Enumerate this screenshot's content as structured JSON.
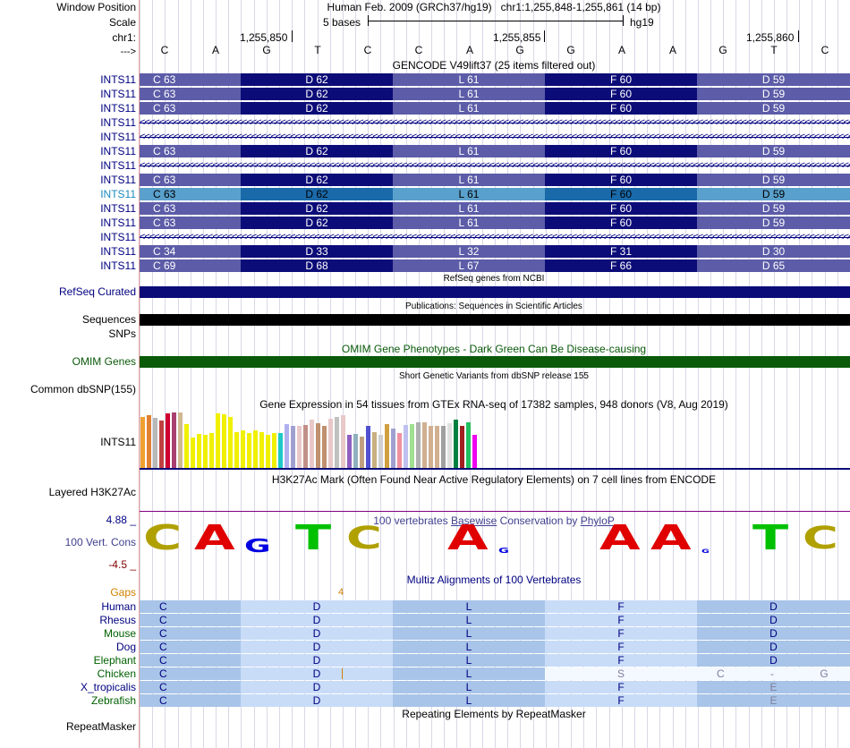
{
  "header": {
    "window_position_label": "Window Position",
    "scale_label": "Scale",
    "chrom_label": "chr1:",
    "arrow_label": "--->",
    "assembly": "Human Feb. 2009 (GRCh37/hg19)",
    "position": "chr1:1,255,848-1,255,861 (14 bp)",
    "scale_text": "5 bases",
    "db": "hg19",
    "coords": [
      "1,255,850",
      "1,255,855",
      "1,255,860"
    ],
    "bases": [
      "C",
      "A",
      "G",
      "T",
      "C",
      "C",
      "A",
      "G",
      "G",
      "A",
      "A",
      "G",
      "T",
      "C"
    ]
  },
  "gencode": {
    "title": "GENCODE V49lift37 (25 items filtered out)",
    "rows": [
      {
        "label": "INTS11",
        "type": "aa",
        "aa": [
          "C 63",
          "D 62",
          "L 61",
          "F 60",
          "D 59"
        ]
      },
      {
        "label": "INTS11",
        "type": "aa",
        "aa": [
          "C 63",
          "D 62",
          "L 61",
          "F 60",
          "D 59"
        ]
      },
      {
        "label": "INTS11",
        "type": "aa",
        "aa": [
          "C 63",
          "D 62",
          "L 61",
          "F 60",
          "D 59"
        ]
      },
      {
        "label": "INTS11",
        "type": "intron",
        "aa": []
      },
      {
        "label": "INTS11",
        "type": "intron",
        "aa": []
      },
      {
        "label": "INTS11",
        "type": "aa",
        "aa": [
          "C 63",
          "D 62",
          "L 61",
          "F 60",
          "D 59"
        ]
      },
      {
        "label": "INTS11",
        "type": "intron",
        "aa": []
      },
      {
        "label": "INTS11",
        "type": "aa",
        "aa": [
          "C 63",
          "D 62",
          "L 61",
          "F 60",
          "D 59"
        ]
      },
      {
        "label": "INTS11",
        "type": "aa_hl",
        "aa": [
          "C 63",
          "D 62",
          "L 61",
          "F 60",
          "D 59"
        ]
      },
      {
        "label": "INTS11",
        "type": "aa",
        "aa": [
          "C 63",
          "D 62",
          "L 61",
          "F 60",
          "D 59"
        ]
      },
      {
        "label": "INTS11",
        "type": "aa",
        "aa": [
          "C 63",
          "D 62",
          "L 61",
          "F 60",
          "D 59"
        ]
      },
      {
        "label": "INTS11",
        "type": "intron",
        "aa": []
      },
      {
        "label": "INTS11",
        "type": "aa",
        "aa": [
          "C 34",
          "D 33",
          "L 32",
          "F 31",
          "D 30"
        ]
      },
      {
        "label": "INTS11",
        "type": "aa",
        "aa": [
          "C 69",
          "D 68",
          "L 67",
          "F 66",
          "D 65"
        ]
      }
    ],
    "colors": {
      "light": "#5c5ca8",
      "dark": "#0c0c78",
      "hl_light": "#5aa0cc",
      "hl_dark": "#1a6aaa",
      "label": "#000080",
      "label_hl": "#1a8ac0"
    }
  },
  "refseq": {
    "title": "RefSeq genes from NCBI",
    "label": "RefSeq Curated",
    "color": "#0c0c78"
  },
  "publications": {
    "title": "Publications: Sequences in Scientific Articles",
    "label": "Sequences",
    "color": "#000000"
  },
  "snps_label": "SNPs",
  "omim": {
    "title": "OMIM Gene Phenotypes - Dark Green Can Be Disease-causing",
    "label": "OMIM Genes",
    "color": "#0a5a0a"
  },
  "dbsnp": {
    "title": "Short Genetic Variants from dbSNP release 155",
    "label": "Common dbSNP(155)"
  },
  "gtex": {
    "title": "Gene Expression in 54 tissues from GTEx RNA-seq of 17382 samples, 948 donors (V8, Aug 2019)",
    "label": "INTS11",
    "values": [
      58,
      60,
      57,
      54,
      62,
      63,
      63,
      50,
      35,
      39,
      38,
      40,
      62,
      61,
      58,
      41,
      43,
      40,
      43,
      41,
      38,
      40,
      40,
      50,
      48,
      48,
      49,
      55,
      51,
      48,
      56,
      58,
      60,
      38,
      39,
      36,
      48,
      41,
      38,
      50,
      45,
      40,
      49,
      50,
      52,
      52,
      48,
      48,
      48,
      51,
      55,
      48,
      52,
      38
    ],
    "colors": [
      "#f0a030",
      "#e08030",
      "#b8b8b8",
      "#c04040",
      "#d00030",
      "#a84070",
      "#d0b890",
      "#f0f000",
      "#f0f000",
      "#f0f000",
      "#f0f000",
      "#f0f000",
      "#f0f000",
      "#f0f000",
      "#f0f000",
      "#f0f000",
      "#f0f000",
      "#f0f000",
      "#f0f000",
      "#f0f000",
      "#f0f000",
      "#f0f000",
      "#20c8c8",
      "#b0b0f0",
      "#a0a0d0",
      "#e8c8c8",
      "#c09088",
      "#e8c8c8",
      "#c09070",
      "#c09070",
      "#e8c8c8",
      "#c0c0c0",
      "#e8c8c8",
      "#9060c0",
      "#90b0c0",
      "#c0a080",
      "#5050d0",
      "#c8b080",
      "#d0d0d0",
      "#d0a040",
      "#a0a0d0",
      "#f090a0",
      "#c0c0f0",
      "#a0e090",
      "#b0b0b0",
      "#d0b090",
      "#d0b090",
      "#d0b090",
      "#a0a0a0",
      "#e0e0e0",
      "#008040",
      "#a02020",
      "#20c060",
      "#f000f0"
    ]
  },
  "h3k27ac": {
    "title": "H3K27Ac Mark (Often Found Near Active Regulatory Elements) on 7 cell lines from ENCODE",
    "label": "Layered H3K27Ac"
  },
  "cons": {
    "title_prefix": "100 vertebrates ",
    "title_link": "Basewise",
    "title_mid": " Conservation by ",
    "title_link2": "PhyloP",
    "label": "100 Vert. Cons",
    "ymax": "4.88 _",
    "ymin": "-4.5 _",
    "logo": [
      {
        "b": "C",
        "h": 30,
        "c": "#b0a000"
      },
      {
        "b": "A",
        "h": 30,
        "c": "#e00000"
      },
      {
        "b": "G",
        "h": 16,
        "c": "#0000e0"
      },
      {
        "b": "T",
        "h": 30,
        "c": "#00c000"
      },
      {
        "b": "C",
        "h": 28,
        "c": "#b0a000"
      },
      {
        "b": "",
        "h": 0,
        "c": "#ffffff"
      },
      {
        "b": "A",
        "h": 30,
        "c": "#e00000"
      },
      {
        "b": "G",
        "h": 6,
        "c": "#0000e0"
      },
      {
        "b": "",
        "h": 0,
        "c": "#ffffff"
      },
      {
        "b": "A",
        "h": 30,
        "c": "#e00000"
      },
      {
        "b": "A",
        "h": 30,
        "c": "#e00000"
      },
      {
        "b": "G",
        "h": 4,
        "c": "#0000e0"
      },
      {
        "b": "T",
        "h": 30,
        "c": "#00c000"
      },
      {
        "b": "C",
        "h": 28,
        "c": "#b0a000"
      }
    ]
  },
  "multiz": {
    "title": "Multiz Alignments of 100 Vertebrates",
    "gaps_label": "Gaps",
    "gap_value": "4",
    "species": [
      {
        "name": "Human",
        "color": "#000080",
        "aa": [
          "C",
          "D",
          "L",
          "F",
          "D"
        ],
        "gray": [
          false,
          false,
          false,
          false,
          false
        ]
      },
      {
        "name": "Rhesus",
        "color": "#000080",
        "aa": [
          "C",
          "D",
          "L",
          "F",
          "D"
        ],
        "gray": [
          false,
          false,
          false,
          false,
          false
        ]
      },
      {
        "name": "Mouse",
        "color": "#006000",
        "aa": [
          "C",
          "D",
          "L",
          "F",
          "D"
        ],
        "gray": [
          false,
          false,
          false,
          false,
          false
        ]
      },
      {
        "name": "Dog",
        "color": "#000080",
        "aa": [
          "C",
          "D",
          "L",
          "F",
          "D"
        ],
        "gray": [
          false,
          false,
          false,
          false,
          false
        ]
      },
      {
        "name": "Elephant",
        "color": "#006000",
        "aa": [
          "C",
          "D",
          "L",
          "F",
          "D"
        ],
        "gray": [
          false,
          false,
          false,
          false,
          false
        ]
      },
      {
        "name": "Chicken",
        "color": "#006000",
        "aa": [
          "C",
          "D",
          "L",
          "S",
          "C - G"
        ],
        "gray": [
          false,
          false,
          false,
          true,
          true
        ]
      },
      {
        "name": "X_tropicalis",
        "color": "#000080",
        "aa": [
          "C",
          "D",
          "L",
          "F",
          "E"
        ],
        "gray": [
          false,
          false,
          false,
          false,
          true
        ]
      },
      {
        "name": "Zebrafish",
        "color": "#006000",
        "aa": [
          "C",
          "D",
          "L",
          "F",
          "E"
        ],
        "gray": [
          false,
          false,
          false,
          false,
          true
        ]
      }
    ]
  },
  "repeatmasker": {
    "title": "Repeating Elements by RepeatMasker",
    "label": "RepeatMasker"
  }
}
